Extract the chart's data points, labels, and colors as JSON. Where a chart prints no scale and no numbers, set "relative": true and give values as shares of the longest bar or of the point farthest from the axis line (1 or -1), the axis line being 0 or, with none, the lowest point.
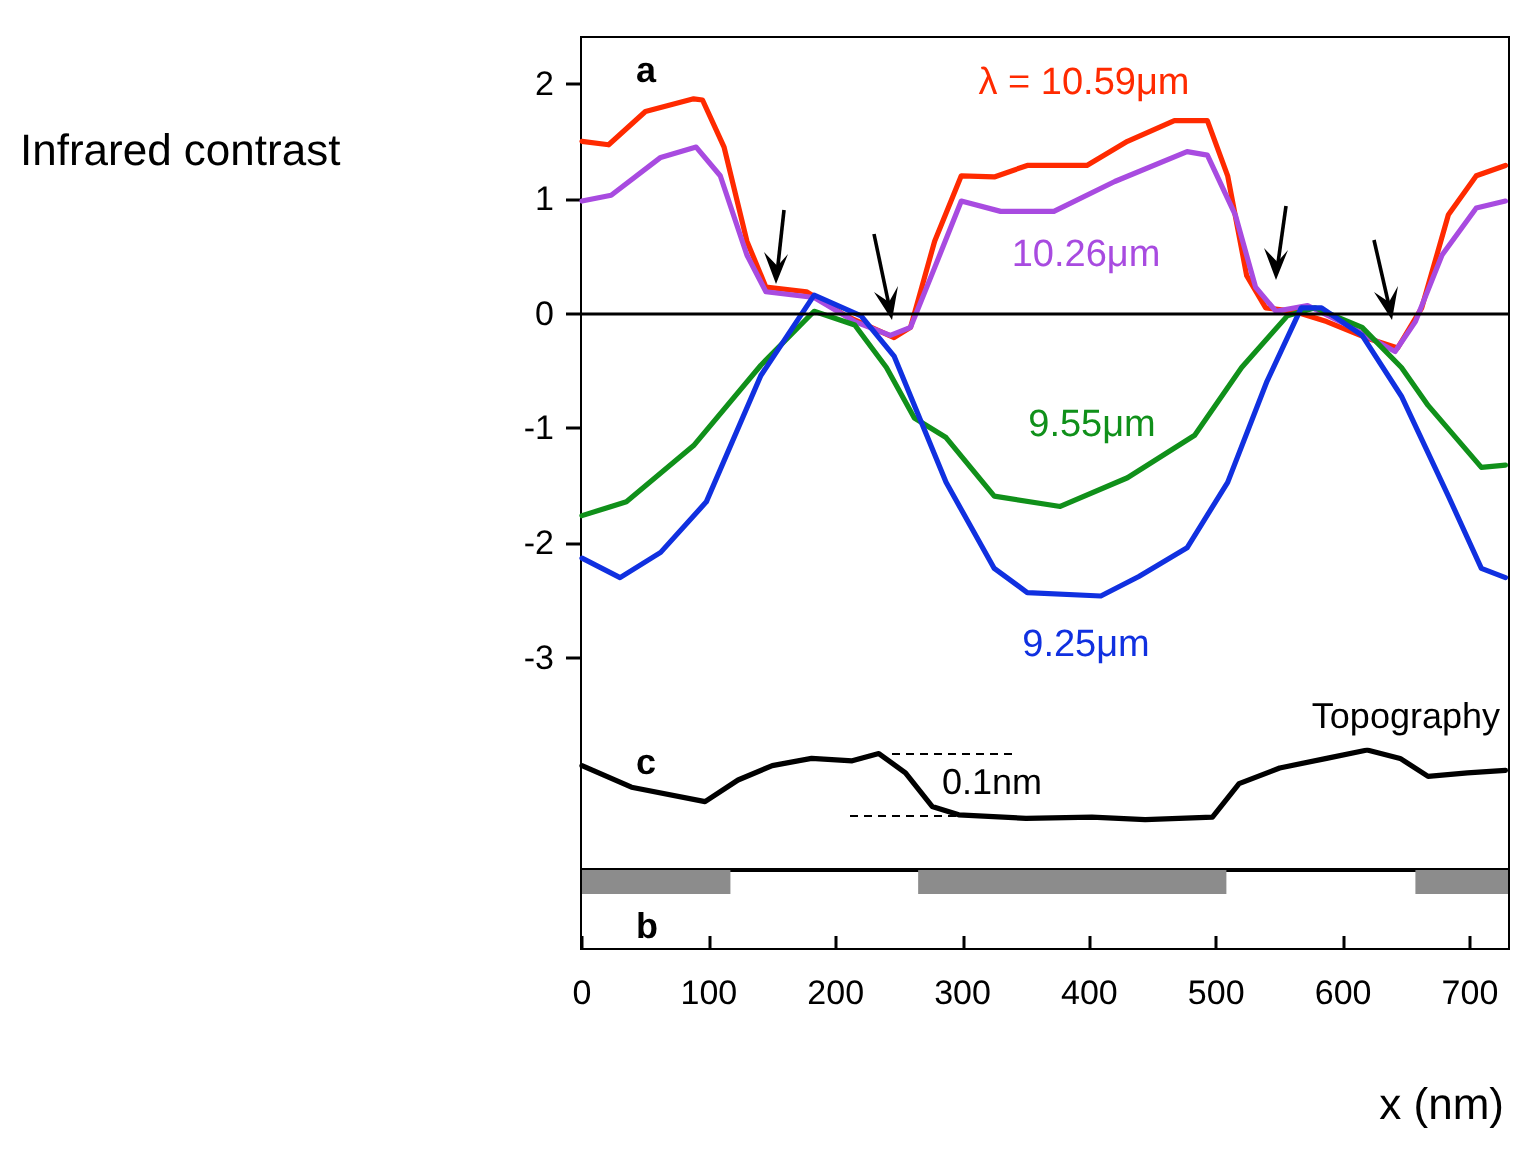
{
  "chart_data": [
    {
      "type": "line",
      "ylabel": "Infrared contrast",
      "annotations": [
        "a"
      ],
      "xlim": [
        0,
        730
      ],
      "xticks": [
        0,
        100,
        200,
        300,
        400,
        500,
        600,
        700
      ],
      "ylim": [
        -3,
        2.4
      ],
      "yticks": [
        -3,
        -2,
        -1,
        0,
        1,
        2
      ],
      "tick_labels": "y",
      "ref_lines": [
        {
          "axis": "y",
          "value": 0,
          "color": "#000000"
        }
      ],
      "series": [
        {
          "name": "λ = 10.59μm",
          "color": "#ff2a00",
          "x": [
            0,
            21,
            50,
            88,
            95,
            112,
            130,
            145,
            177,
            208,
            246,
            259,
            278,
            299,
            325,
            351,
            398,
            430,
            467,
            493,
            509,
            524,
            539,
            561,
            587,
            618,
            643,
            662,
            683,
            705,
            728
          ],
          "values": [
            1.5,
            1.47,
            1.76,
            1.87,
            1.86,
            1.45,
            0.63,
            0.23,
            0.19,
            -0.02,
            -0.21,
            -0.12,
            0.63,
            1.2,
            1.19,
            1.29,
            1.29,
            1.5,
            1.68,
            1.68,
            1.2,
            0.33,
            0.05,
            0.02,
            -0.07,
            -0.21,
            -0.3,
            0.05,
            0.86,
            1.2,
            1.29
          ]
        },
        {
          "name": "10.26μm",
          "color": "#a84be0",
          "x": [
            0,
            23,
            62,
            90,
            109,
            130,
            145,
            183,
            215,
            243,
            259,
            278,
            299,
            330,
            372,
            420,
            477,
            493,
            515,
            531,
            547,
            572,
            603,
            641,
            657,
            678,
            705,
            728
          ],
          "values": [
            0.98,
            1.03,
            1.36,
            1.45,
            1.2,
            0.51,
            0.19,
            0.14,
            -0.07,
            -0.19,
            -0.12,
            0.4,
            0.98,
            0.89,
            0.89,
            1.15,
            1.41,
            1.38,
            0.86,
            0.23,
            0.02,
            0.07,
            -0.1,
            -0.33,
            -0.07,
            0.51,
            0.92,
            0.98
          ]
        },
        {
          "name": "9.55μm",
          "color": "#10901a",
          "x": [
            0,
            35,
            88,
            141,
            183,
            215,
            240,
            262,
            287,
            325,
            377,
            430,
            483,
            520,
            556,
            578,
            615,
            646,
            667,
            709,
            728
          ],
          "values": [
            -1.76,
            -1.64,
            -1.15,
            -0.45,
            0.02,
            -0.1,
            -0.47,
            -0.91,
            -1.08,
            -1.59,
            -1.68,
            -1.43,
            -1.06,
            -0.47,
            -0.02,
            0.05,
            -0.12,
            -0.47,
            -0.8,
            -1.34,
            -1.32
          ]
        },
        {
          "name": "9.25μm",
          "color": "#1030e0",
          "x": [
            0,
            30,
            62,
            98,
            141,
            183,
            220,
            246,
            287,
            325,
            351,
            409,
            439,
            477,
            509,
            540,
            567,
            583,
            615,
            646,
            683,
            709,
            728
          ],
          "values": [
            -2.13,
            -2.3,
            -2.08,
            -1.64,
            -0.54,
            0.16,
            -0.02,
            -0.37,
            -1.47,
            -2.22,
            -2.43,
            -2.46,
            -2.29,
            -2.04,
            -1.47,
            -0.59,
            0.05,
            0.05,
            -0.19,
            -0.72,
            -1.59,
            -2.22,
            -2.3
          ]
        }
      ]
    },
    {
      "type": "line",
      "relative": true,
      "annotations": [
        "c",
        "0.1nm"
      ],
      "xlim": [
        0,
        730
      ],
      "xticks": [
        0,
        100,
        200,
        300,
        400,
        500,
        600,
        700
      ],
      "tick_labels": false,
      "series": [
        {
          "name": "Topography",
          "color": "#000000",
          "x": [
            0,
            39,
            97,
            123,
            150,
            181,
            213,
            234,
            255,
            276,
            297,
            350,
            402,
            444,
            497,
            518,
            550,
            587,
            619,
            645,
            667,
            698,
            728
          ],
          "values": [
            0.87,
            0.69,
            0.57,
            0.75,
            0.87,
            0.93,
            0.91,
            0.97,
            0.81,
            0.53,
            0.46,
            0.43,
            0.44,
            0.42,
            0.44,
            0.72,
            0.85,
            0.93,
            1,
            0.93,
            0.78,
            0.81,
            0.83
          ]
        }
      ]
    },
    {
      "type": "bar",
      "orientation": "horizontal",
      "categories": [
        null
      ],
      "xlabel": "x (nm)",
      "annotations": [
        "b"
      ],
      "xlim": [
        0,
        730
      ],
      "xticks": [
        0,
        100,
        200,
        300,
        400,
        500,
        600,
        700
      ],
      "tick_labels": "x",
      "series": [
        {
          "color": "#8c8c8c",
          "values": [
            117
          ],
          "base": [
            0
          ]
        },
        {
          "color": "#8c8c8c",
          "values": [
            243
          ],
          "base": [
            265
          ]
        },
        {
          "color": "#8c8c8c",
          "values": [
            73
          ],
          "base": [
            657
          ]
        }
      ]
    }
  ]
}
